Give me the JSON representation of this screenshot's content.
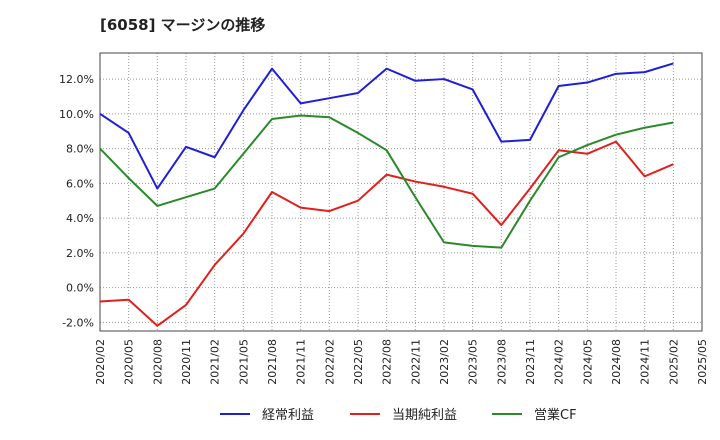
{
  "chart_data": {
    "type": "line",
    "title": "[6058]  マージンの推移",
    "x": [
      "2020/02",
      "2020/05",
      "2020/08",
      "2020/11",
      "2021/02",
      "2021/05",
      "2021/08",
      "2021/11",
      "2022/02",
      "2022/05",
      "2022/08",
      "2022/11",
      "2023/02",
      "2023/05",
      "2023/08",
      "2023/11",
      "2024/02",
      "2024/05",
      "2024/08",
      "2024/11",
      "2025/02",
      "2025/05"
    ],
    "ylim": [
      -2.5,
      13.5
    ],
    "yticks": [
      -2,
      0,
      2,
      4,
      6,
      8,
      10,
      12
    ],
    "ytick_labels": [
      "-2.0%",
      "0.0%",
      "2.0%",
      "4.0%",
      "6.0%",
      "8.0%",
      "10.0%",
      "12.0%"
    ],
    "grid": true,
    "legend_position": "bottom",
    "series": [
      {
        "name": "経常利益",
        "color": "#1f1fd6",
        "values": [
          10.0,
          8.9,
          5.7,
          8.1,
          7.5,
          10.2,
          12.6,
          10.6,
          10.9,
          11.2,
          12.6,
          11.9,
          12.0,
          11.4,
          8.4,
          8.5,
          11.6,
          11.8,
          12.3,
          12.4,
          12.9,
          null
        ]
      },
      {
        "name": "当期純利益",
        "color": "#e0201c",
        "values": [
          -0.8,
          -0.7,
          -2.2,
          -1.0,
          1.3,
          3.1,
          5.5,
          4.6,
          4.4,
          5.0,
          6.5,
          6.1,
          5.8,
          5.4,
          3.6,
          5.7,
          7.9,
          7.7,
          8.4,
          6.4,
          7.1,
          null
        ]
      },
      {
        "name": "営業CF",
        "color": "#2a8a2a",
        "values": [
          8.0,
          6.3,
          4.7,
          5.2,
          5.7,
          7.7,
          9.7,
          9.9,
          9.8,
          8.9,
          7.9,
          5.2,
          2.6,
          2.4,
          2.3,
          5.0,
          7.5,
          8.2,
          8.8,
          9.2,
          9.5,
          null
        ]
      }
    ]
  }
}
